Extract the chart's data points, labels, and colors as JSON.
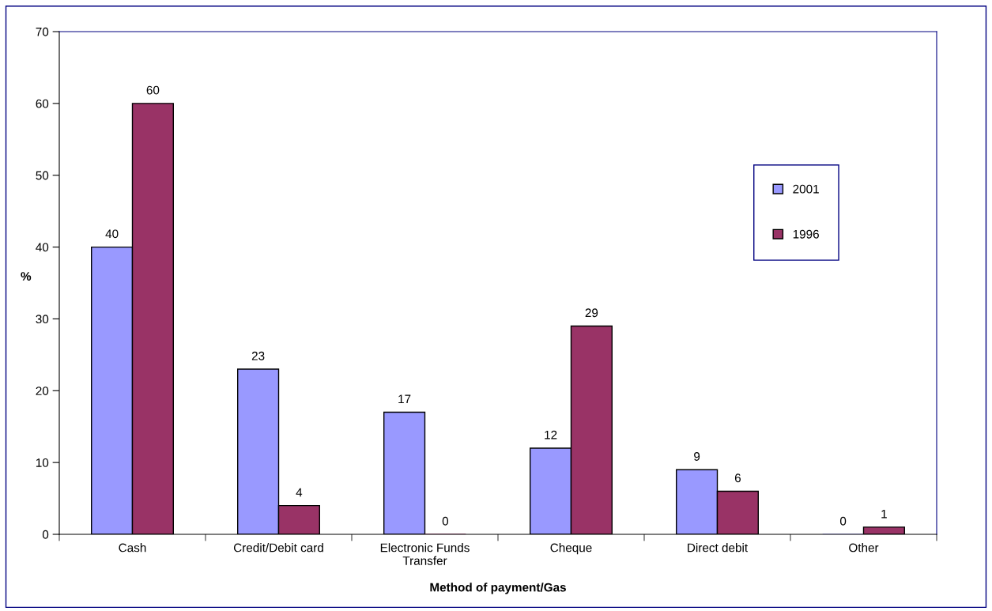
{
  "chart_data": {
    "type": "bar",
    "xlabel": "Method of payment/Gas",
    "ylabel": "%",
    "categories": [
      "Cash",
      "Credit/Debit card",
      "Electronic Funds\nTransfer",
      "Cheque",
      "Direct debit",
      "Other"
    ],
    "series": [
      {
        "name": "2001",
        "color": "#9999ff",
        "values": [
          40,
          23,
          17,
          12,
          9,
          0
        ]
      },
      {
        "name": "1996",
        "color": "#993366",
        "values": [
          60,
          4,
          0,
          29,
          6,
          1
        ]
      }
    ],
    "ylim": [
      0,
      70
    ],
    "yticks": [
      0,
      10,
      20,
      30,
      40,
      50,
      60,
      70
    ],
    "grid": false,
    "legend": "right",
    "data_labels": true
  }
}
